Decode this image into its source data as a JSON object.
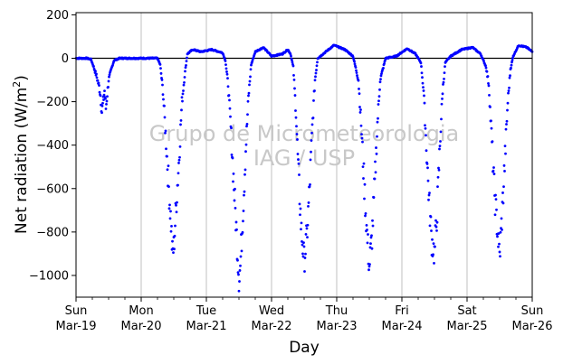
{
  "chart_data": {
    "type": "scatter",
    "title": "",
    "xlabel": "Day",
    "ylabel_main": "Net radiation (W/m",
    "ylabel_sup": "2",
    "ylabel_close": ")",
    "ylim": [
      -1100,
      210
    ],
    "xlim": [
      "2017-03-19",
      "2017-03-26"
    ],
    "yticks": [
      200,
      0,
      -200,
      -400,
      -600,
      -800,
      -1000
    ],
    "ytick_labels": [
      "200",
      "0",
      "−200",
      "−400",
      "−600",
      "−800",
      "−1000"
    ],
    "xticks": [
      {
        "weekday": "Sun",
        "date": "Mar-19"
      },
      {
        "weekday": "Mon",
        "date": "Mar-20"
      },
      {
        "weekday": "Tue",
        "date": "Mar-21"
      },
      {
        "weekday": "Wed",
        "date": "Mar-22"
      },
      {
        "weekday": "Thu",
        "date": "Mar-23"
      },
      {
        "weekday": "Fri",
        "date": "Mar-24"
      },
      {
        "weekday": "Sat",
        "date": "Mar-25"
      },
      {
        "weekday": "Sun",
        "date": "Mar-26"
      }
    ],
    "grid": "vertical",
    "reference_line_y": 0,
    "marker_color": "#0000ff",
    "series": [
      {
        "name": "",
        "points": [
          [
            "2017-03-19 00:00",
            0
          ],
          [
            "2017-03-19 02:00",
            0
          ],
          [
            "2017-03-19 04:00",
            0
          ],
          [
            "2017-03-19 05:30",
            -5
          ],
          [
            "2017-03-19 06:30",
            -40
          ],
          [
            "2017-03-19 07:30",
            -80
          ],
          [
            "2017-03-19 08:30",
            -130
          ],
          [
            "2017-03-19 09:00",
            -170
          ],
          [
            "2017-03-19 09:30",
            -245
          ],
          [
            "2017-03-19 10:00",
            -200
          ],
          [
            "2017-03-19 10:30",
            -150
          ],
          [
            "2017-03-19 11:00",
            -230
          ],
          [
            "2017-03-19 12:00",
            -100
          ],
          [
            "2017-03-19 13:00",
            -50
          ],
          [
            "2017-03-19 14:00",
            -10
          ],
          [
            "2017-03-19 16:00",
            0
          ],
          [
            "2017-03-19 20:00",
            0
          ],
          [
            "2017-03-20 00:00",
            0
          ],
          [
            "2017-03-20 04:00",
            0
          ],
          [
            "2017-03-20 06:00",
            0
          ],
          [
            "2017-03-20 07:00",
            -30
          ],
          [
            "2017-03-20 08:00",
            -150
          ],
          [
            "2017-03-20 09:00",
            -350
          ],
          [
            "2017-03-20 10:00",
            -560
          ],
          [
            "2017-03-20 11:00",
            -760
          ],
          [
            "2017-03-20 11:30",
            -900
          ],
          [
            "2017-03-20 12:00",
            -870
          ],
          [
            "2017-03-20 13:00",
            -650
          ],
          [
            "2017-03-20 14:00",
            -450
          ],
          [
            "2017-03-20 15:00",
            -200
          ],
          [
            "2017-03-20 16:00",
            -80
          ],
          [
            "2017-03-20 17:00",
            20
          ],
          [
            "2017-03-20 19:00",
            40
          ],
          [
            "2017-03-20 22:00",
            30
          ],
          [
            "2017-03-21 02:00",
            40
          ],
          [
            "2017-03-21 06:00",
            25
          ],
          [
            "2017-03-21 07:00",
            -10
          ],
          [
            "2017-03-21 08:00",
            -120
          ],
          [
            "2017-03-21 09:00",
            -320
          ],
          [
            "2017-03-21 10:00",
            -550
          ],
          [
            "2017-03-21 11:00",
            -780
          ],
          [
            "2017-03-21 12:00",
            -1010
          ],
          [
            "2017-03-21 12:30",
            -960
          ],
          [
            "2017-03-21 13:30",
            -700
          ],
          [
            "2017-03-21 14:30",
            -420
          ],
          [
            "2017-03-21 15:30",
            -180
          ],
          [
            "2017-03-21 16:30",
            -30
          ],
          [
            "2017-03-21 18:00",
            30
          ],
          [
            "2017-03-21 21:00",
            50
          ],
          [
            "2017-03-22 00:00",
            10
          ],
          [
            "2017-03-22 04:00",
            20
          ],
          [
            "2017-03-22 06:00",
            40
          ],
          [
            "2017-03-22 07:00",
            20
          ],
          [
            "2017-03-22 08:00",
            -40
          ],
          [
            "2017-03-22 09:00",
            -250
          ],
          [
            "2017-03-22 10:00",
            -550
          ],
          [
            "2017-03-22 11:00",
            -800
          ],
          [
            "2017-03-22 12:00",
            -930
          ],
          [
            "2017-03-22 13:00",
            -820
          ],
          [
            "2017-03-22 14:00",
            -600
          ],
          [
            "2017-03-22 15:00",
            -320
          ],
          [
            "2017-03-22 16:00",
            -100
          ],
          [
            "2017-03-22 17:00",
            0
          ],
          [
            "2017-03-22 19:00",
            20
          ],
          [
            "2017-03-22 23:00",
            60
          ],
          [
            "2017-03-23 03:00",
            40
          ],
          [
            "2017-03-23 06:00",
            10
          ],
          [
            "2017-03-23 08:00",
            -100
          ],
          [
            "2017-03-23 09:00",
            -300
          ],
          [
            "2017-03-23 10:00",
            -550
          ],
          [
            "2017-03-23 11:00",
            -780
          ],
          [
            "2017-03-23 12:00",
            -960
          ],
          [
            "2017-03-23 13:00",
            -820
          ],
          [
            "2017-03-23 14:00",
            -580
          ],
          [
            "2017-03-23 15:00",
            -300
          ],
          [
            "2017-03-23 16:00",
            -100
          ],
          [
            "2017-03-23 18:00",
            0
          ],
          [
            "2017-03-23 22:00",
            10
          ],
          [
            "2017-03-24 02:00",
            45
          ],
          [
            "2017-03-24 05:00",
            20
          ],
          [
            "2017-03-24 07:00",
            -20
          ],
          [
            "2017-03-24 08:00",
            -150
          ],
          [
            "2017-03-24 09:00",
            -400
          ],
          [
            "2017-03-24 10:00",
            -650
          ],
          [
            "2017-03-24 11:00",
            -840
          ],
          [
            "2017-03-24 12:00",
            -900
          ],
          [
            "2017-03-24 13:00",
            -700
          ],
          [
            "2017-03-24 14:00",
            -400
          ],
          [
            "2017-03-24 15:00",
            -150
          ],
          [
            "2017-03-24 16:00",
            -20
          ],
          [
            "2017-03-24 18:00",
            10
          ],
          [
            "2017-03-24 22:00",
            40
          ],
          [
            "2017-03-25 02:00",
            50
          ],
          [
            "2017-03-25 05:00",
            20
          ],
          [
            "2017-03-25 07:00",
            -40
          ],
          [
            "2017-03-25 08:00",
            -120
          ],
          [
            "2017-03-25 09:00",
            -350
          ],
          [
            "2017-03-25 10:00",
            -600
          ],
          [
            "2017-03-25 11:00",
            -760
          ],
          [
            "2017-03-25 12:00",
            -910
          ],
          [
            "2017-03-25 13:00",
            -700
          ],
          [
            "2017-03-25 14:00",
            -450
          ],
          [
            "2017-03-25 15:00",
            -200
          ],
          [
            "2017-03-25 16:00",
            -50
          ],
          [
            "2017-03-25 17:00",
            10
          ],
          [
            "2017-03-25 19:00",
            60
          ],
          [
            "2017-03-25 22:00",
            50
          ],
          [
            "2017-03-26 00:00",
            30
          ]
        ]
      }
    ],
    "watermark_line1": "Grupo de Micrometeorologia",
    "watermark_line2": "IAG / USP"
  }
}
